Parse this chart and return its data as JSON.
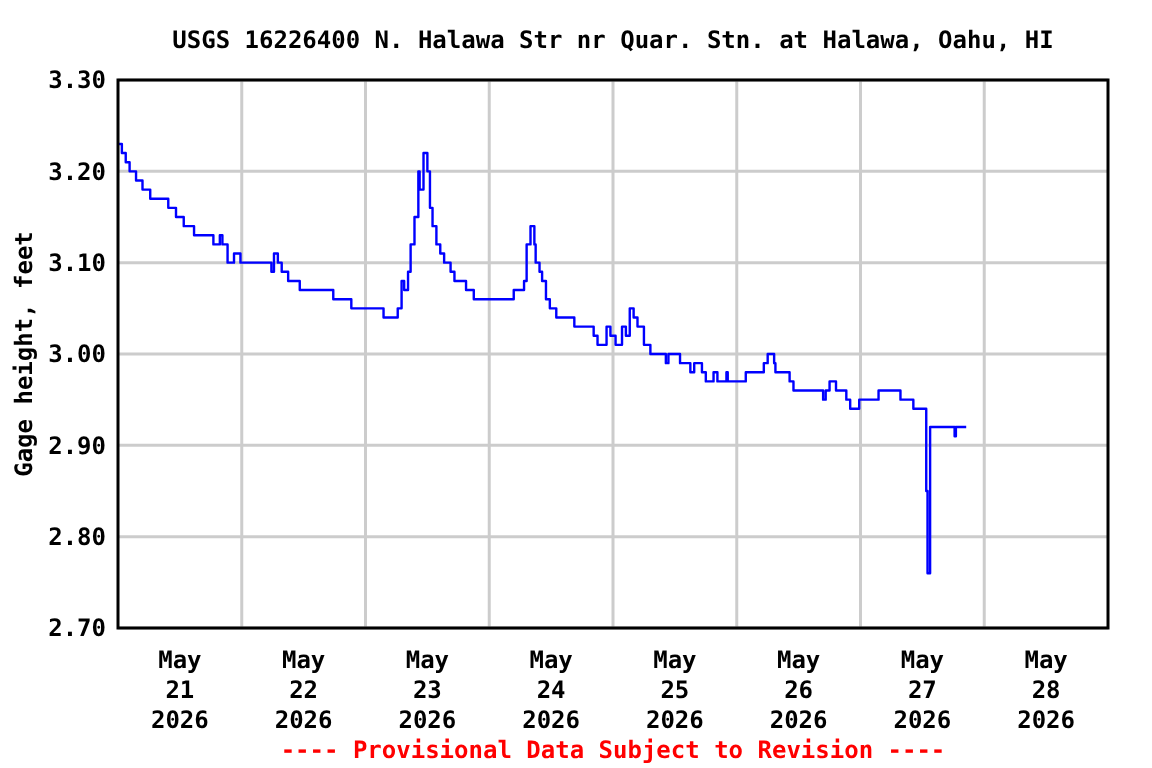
{
  "chart_data": {
    "type": "step",
    "title": "USGS 16226400 N. Halawa Str nr Quar. Stn. at Halawa, Oahu, HI",
    "ylabel": "Gage height, feet",
    "annotations": [
      "---- Provisional Data Subject to Revision ----"
    ],
    "xlim": [
      "2026-05-21T00:00",
      "2026-05-29T00:00"
    ],
    "xticks": [
      {
        "value": "2026-05-21T12:00",
        "label": "May 21 2026"
      },
      {
        "value": "2026-05-22T12:00",
        "label": "May 22 2026"
      },
      {
        "value": "2026-05-23T12:00",
        "label": "May 23 2026"
      },
      {
        "value": "2026-05-24T12:00",
        "label": "May 24 2026"
      },
      {
        "value": "2026-05-25T12:00",
        "label": "May 25 2026"
      },
      {
        "value": "2026-05-26T12:00",
        "label": "May 26 2026"
      },
      {
        "value": "2026-05-27T12:00",
        "label": "May 27 2026"
      },
      {
        "value": "2026-05-28T12:00",
        "label": "May 28 2026"
      },
      {
        "value": "2026-05-22T00:00",
        "label": null
      },
      {
        "value": "2026-05-23T00:00",
        "label": null
      },
      {
        "value": "2026-05-24T00:00",
        "label": null
      },
      {
        "value": "2026-05-25T00:00",
        "label": null
      },
      {
        "value": "2026-05-26T00:00",
        "label": null
      },
      {
        "value": "2026-05-27T00:00",
        "label": null
      },
      {
        "value": "2026-05-28T00:00",
        "label": null
      }
    ],
    "ylim": [
      2.7,
      3.3
    ],
    "yticks": [
      {
        "value": 2.7,
        "label": "2.70"
      },
      {
        "value": 2.8,
        "label": "2.80"
      },
      {
        "value": 2.9,
        "label": "2.90"
      },
      {
        "value": 3.0,
        "label": "3.00"
      },
      {
        "value": 3.1,
        "label": "3.10"
      },
      {
        "value": 3.2,
        "label": "3.20"
      },
      {
        "value": 3.3,
        "label": "3.30"
      }
    ],
    "grid": true,
    "line_style": "solid",
    "series": [
      {
        "color": "#0000ff",
        "x": [
          "2026-05-21T00:00",
          "2026-05-21T00:45",
          "2026-05-21T01:30",
          "2026-05-21T02:15",
          "2026-05-21T03:30",
          "2026-05-21T04:45",
          "2026-05-21T06:15",
          "2026-05-21T09:45",
          "2026-05-21T11:15",
          "2026-05-21T12:45",
          "2026-05-21T14:45",
          "2026-05-21T18:30",
          "2026-05-21T19:45",
          "2026-05-21T20:15",
          "2026-05-21T21:15",
          "2026-05-21T22:30",
          "2026-05-21T23:45",
          "2026-05-22T05:45",
          "2026-05-22T06:15",
          "2026-05-22T07:00",
          "2026-05-22T07:45",
          "2026-05-22T09:00",
          "2026-05-22T11:15",
          "2026-05-22T17:45",
          "2026-05-22T21:15",
          "2026-05-23T03:30",
          "2026-05-23T06:15",
          "2026-05-23T07:00",
          "2026-05-23T07:30",
          "2026-05-23T08:15",
          "2026-05-23T08:45",
          "2026-05-23T09:30",
          "2026-05-23T10:15",
          "2026-05-23T10:30",
          "2026-05-23T11:15",
          "2026-05-23T12:00",
          "2026-05-23T12:30",
          "2026-05-23T13:00",
          "2026-05-23T13:45",
          "2026-05-23T14:30",
          "2026-05-23T15:15",
          "2026-05-23T16:30",
          "2026-05-23T17:15",
          "2026-05-23T19:30",
          "2026-05-23T21:00",
          "2026-05-24T04:45",
          "2026-05-24T06:45",
          "2026-05-24T07:15",
          "2026-05-24T08:00",
          "2026-05-24T08:45",
          "2026-05-24T09:00",
          "2026-05-24T09:45",
          "2026-05-24T10:15",
          "2026-05-24T11:00",
          "2026-05-24T11:45",
          "2026-05-24T13:00",
          "2026-05-24T16:30",
          "2026-05-24T20:15",
          "2026-05-24T21:00",
          "2026-05-24T22:45",
          "2026-05-24T23:30",
          "2026-05-25T00:30",
          "2026-05-25T01:45",
          "2026-05-25T02:30",
          "2026-05-25T03:15",
          "2026-05-25T04:00",
          "2026-05-25T04:45",
          "2026-05-25T06:00",
          "2026-05-25T07:15",
          "2026-05-25T10:15",
          "2026-05-25T10:45",
          "2026-05-25T13:00",
          "2026-05-25T15:00",
          "2026-05-25T15:45",
          "2026-05-25T17:15",
          "2026-05-25T18:00",
          "2026-05-25T19:30",
          "2026-05-25T20:15",
          "2026-05-25T22:00",
          "2026-05-25T22:15",
          "2026-05-26T01:45",
          "2026-05-26T05:15",
          "2026-05-26T06:00",
          "2026-05-26T07:15",
          "2026-05-26T07:30",
          "2026-05-26T10:15",
          "2026-05-26T11:00",
          "2026-05-26T16:45",
          "2026-05-26T17:15",
          "2026-05-26T18:00",
          "2026-05-26T19:15",
          "2026-05-26T21:15",
          "2026-05-26T22:00",
          "2026-05-26T23:45",
          "2026-05-27T03:30",
          "2026-05-27T07:45",
          "2026-05-27T10:15",
          "2026-05-27T12:45",
          "2026-05-27T13:00",
          "2026-05-27T13:30",
          "2026-05-27T18:15",
          "2026-05-27T18:30",
          "2026-05-27T20:30"
        ],
        "values": [
          3.23,
          3.22,
          3.21,
          3.2,
          3.19,
          3.18,
          3.17,
          3.16,
          3.15,
          3.14,
          3.13,
          3.12,
          3.13,
          3.12,
          3.1,
          3.11,
          3.1,
          3.09,
          3.11,
          3.1,
          3.09,
          3.08,
          3.07,
          3.06,
          3.05,
          3.04,
          3.05,
          3.08,
          3.07,
          3.09,
          3.12,
          3.15,
          3.2,
          3.18,
          3.22,
          3.2,
          3.16,
          3.14,
          3.12,
          3.11,
          3.1,
          3.09,
          3.08,
          3.07,
          3.06,
          3.07,
          3.08,
          3.12,
          3.14,
          3.12,
          3.1,
          3.09,
          3.08,
          3.06,
          3.05,
          3.04,
          3.03,
          3.02,
          3.01,
          3.03,
          3.02,
          3.01,
          3.03,
          3.02,
          3.05,
          3.04,
          3.03,
          3.01,
          3.0,
          2.99,
          3.0,
          2.99,
          2.98,
          2.99,
          2.98,
          2.97,
          2.98,
          2.97,
          2.98,
          2.97,
          2.98,
          2.99,
          3.0,
          2.99,
          2.98,
          2.97,
          2.96,
          2.95,
          2.96,
          2.97,
          2.96,
          2.95,
          2.94,
          2.95,
          2.96,
          2.95,
          2.94,
          2.85,
          2.76,
          2.92,
          2.91,
          2.92,
          2.92
        ]
      }
    ]
  }
}
